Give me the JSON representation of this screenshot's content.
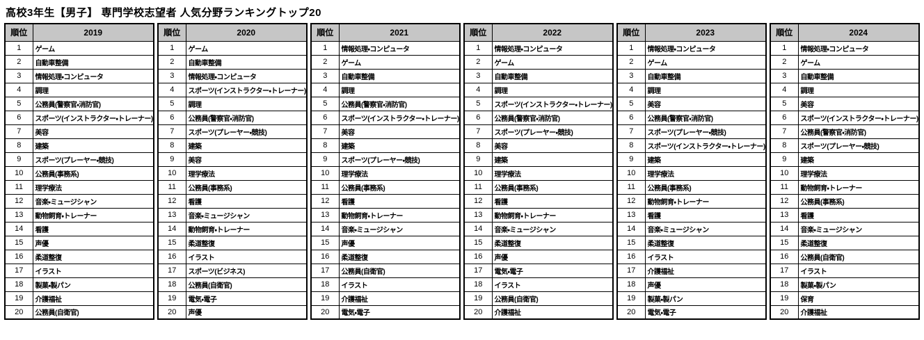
{
  "title": "高校3年生【男子】 専門学校志望者 人気分野ランキングトップ20",
  "rank_header": "順位",
  "ranks": [
    "1",
    "2",
    "3",
    "4",
    "5",
    "6",
    "7",
    "8",
    "9",
    "10",
    "11",
    "12",
    "13",
    "14",
    "15",
    "16",
    "17",
    "18",
    "19",
    "20"
  ],
  "colors": {
    "header_bg": "#c6c6c6",
    "border": "#000000",
    "text": "#000000",
    "row_bg": "#ffffff"
  },
  "years": [
    {
      "year": "2019",
      "items": [
        "ゲーム",
        "自動車整備",
        "情報処理・コンピュータ",
        "調理",
        "公務員(警察官・消防官)",
        "スポーツ(インストラクター・トレーナー)",
        "美容",
        "建築",
        "スポーツ(プレーヤー・競技)",
        "公務員(事務系)",
        "理学療法",
        "音楽・ミュージシャン",
        "動物飼育・トレーナー",
        "看護",
        "声優",
        "柔道整復",
        "イラスト",
        "製菓・製パン",
        "介護福祉",
        "公務員(自衛官)"
      ]
    },
    {
      "year": "2020",
      "items": [
        "ゲーム",
        "自動車整備",
        "情報処理・コンピュータ",
        "スポーツ(インストラクター・トレーナー)",
        "調理",
        "公務員(警察官・消防官)",
        "スポーツ(プレーヤー・競技)",
        "建築",
        "美容",
        "理学療法",
        "公務員(事務系)",
        "看護",
        "音楽・ミュージシャン",
        "動物飼育・トレーナー",
        "柔道整復",
        "イラスト",
        "スポーツ(ビジネス)",
        "公務員(自衛官)",
        "電気・電子",
        "声優"
      ]
    },
    {
      "year": "2021",
      "items": [
        "情報処理・コンピュータ",
        "ゲーム",
        "自動車整備",
        "調理",
        "公務員(警察官・消防官)",
        "スポーツ(インストラクター・トレーナー)",
        "美容",
        "建築",
        "スポーツ(プレーヤー・競技)",
        "理学療法",
        "公務員(事務系)",
        "看護",
        "動物飼育・トレーナー",
        "音楽・ミュージシャン",
        "声優",
        "柔道整復",
        "公務員(自衛官)",
        "イラスト",
        "介護福祉",
        "電気・電子"
      ]
    },
    {
      "year": "2022",
      "items": [
        "情報処理・コンピュータ",
        "ゲーム",
        "自動車整備",
        "調理",
        "スポーツ(インストラクター・トレーナー)",
        "公務員(警察官・消防官)",
        "スポーツ(プレーヤー・競技)",
        "美容",
        "建築",
        "理学療法",
        "公務員(事務系)",
        "看護",
        "動物飼育・トレーナー",
        "音楽・ミュージシャン",
        "柔道整復",
        "声優",
        "電気・電子",
        "イラスト",
        "公務員(自衛官)",
        "介護福祉"
      ]
    },
    {
      "year": "2023",
      "items": [
        "情報処理・コンピュータ",
        "ゲーム",
        "自動車整備",
        "調理",
        "美容",
        "公務員(警察官・消防官)",
        "スポーツ(プレーヤー・競技)",
        "スポーツ(インストラクター・トレーナー)",
        "建築",
        "理学療法",
        "公務員(事務系)",
        "動物飼育・トレーナー",
        "看護",
        "音楽・ミュージシャン",
        "柔道整復",
        "イラスト",
        "介護福祉",
        "声優",
        "製菓・製パン",
        "電気・電子"
      ]
    },
    {
      "year": "2024",
      "items": [
        "情報処理・コンピュータ",
        "ゲーム",
        "自動車整備",
        "調理",
        "美容",
        "スポーツ(インストラクター・トレーナー)",
        "公務員(警察官・消防官)",
        "スポーツ(プレーヤー・競技)",
        "建築",
        "理学療法",
        "動物飼育・トレーナー",
        "公務員(事務系)",
        "看護",
        "音楽・ミュージシャン",
        "柔道整復",
        "公務員(自衛官)",
        "イラスト",
        "製菓・製パン",
        "保育",
        "介護福祉"
      ]
    }
  ]
}
